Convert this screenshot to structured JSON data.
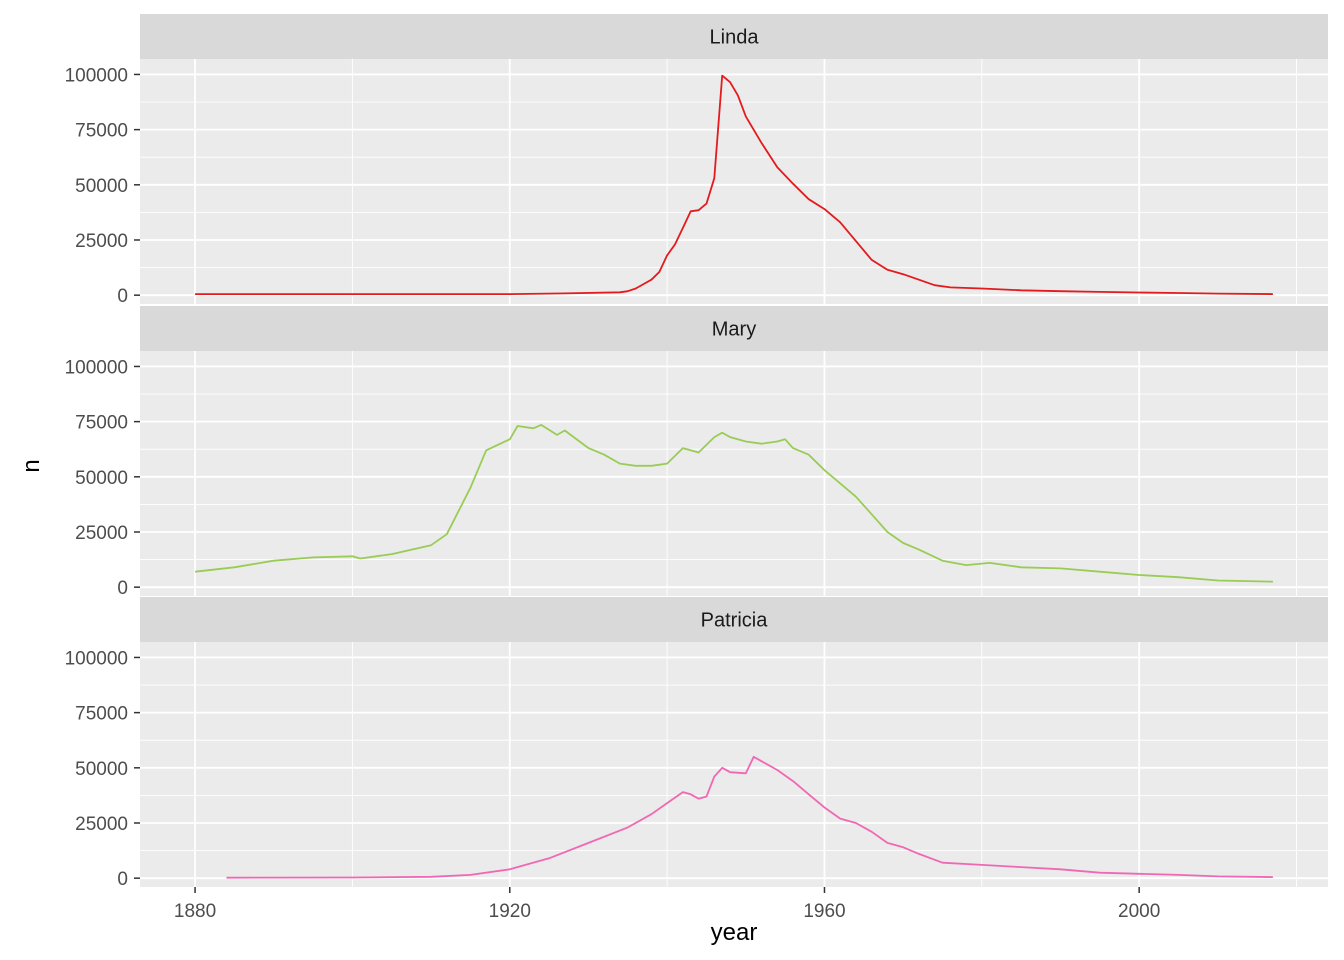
{
  "chart_data": {
    "type": "line",
    "facet_by": "name",
    "xlabel": "year",
    "ylabel": "n",
    "xlim": [
      1873,
      2024
    ],
    "ylim": [
      -4000,
      107000
    ],
    "x_ticks": [
      1880,
      1920,
      1960,
      2000
    ],
    "x_tick_labels": [
      "1880",
      "1920",
      "1960",
      "2000"
    ],
    "y_ticks": [
      0,
      25000,
      50000,
      75000,
      100000
    ],
    "y_tick_labels": [
      "0",
      "25000",
      "50000",
      "75000",
      "100000"
    ],
    "grid": true,
    "legend": "none",
    "panels": [
      {
        "name": "Linda",
        "color": "#E41A1C",
        "x": [
          1880,
          1900,
          1920,
          1927,
          1934,
          1935,
          1936,
          1937,
          1938,
          1939,
          1940,
          1941,
          1942,
          1943,
          1944,
          1945,
          1946,
          1947,
          1948,
          1949,
          1950,
          1952,
          1954,
          1956,
          1958,
          1960,
          1962,
          1964,
          1966,
          1968,
          1970,
          1972,
          1974,
          1976,
          1980,
          1985,
          1990,
          1995,
          2000,
          2005,
          2010,
          2017
        ],
        "y": [
          500,
          500,
          500,
          800,
          1300,
          1800,
          3000,
          5000,
          7000,
          10500,
          18000,
          23000,
          30500,
          38000,
          38500,
          41500,
          53000,
          99500,
          96500,
          90500,
          81000,
          69000,
          58000,
          50500,
          43500,
          39000,
          33000,
          24500,
          16000,
          11500,
          9500,
          7000,
          4500,
          3500,
          3000,
          2200,
          1800,
          1500,
          1200,
          1000,
          700,
          500
        ]
      },
      {
        "name": "Mary",
        "color": "#99CC55",
        "x": [
          1880,
          1885,
          1890,
          1895,
          1900,
          1901,
          1905,
          1910,
          1912,
          1915,
          1917,
          1920,
          1921,
          1923,
          1924,
          1926,
          1927,
          1930,
          1932,
          1934,
          1936,
          1938,
          1940,
          1942,
          1944,
          1946,
          1947,
          1948,
          1950,
          1952,
          1954,
          1955,
          1956,
          1958,
          1960,
          1962,
          1964,
          1966,
          1968,
          1970,
          1972,
          1975,
          1978,
          1981,
          1985,
          1990,
          1995,
          2000,
          2005,
          2010,
          2017
        ],
        "y": [
          7000,
          9000,
          12000,
          13500,
          14000,
          13000,
          15000,
          19000,
          24000,
          45000,
          62000,
          67000,
          73000,
          72000,
          73500,
          69000,
          71000,
          63000,
          60000,
          56000,
          55000,
          55000,
          56000,
          63000,
          61000,
          68000,
          70000,
          68000,
          66000,
          65000,
          66000,
          67000,
          63000,
          60000,
          53000,
          47000,
          41000,
          33000,
          25000,
          20000,
          17000,
          12000,
          10000,
          11000,
          9000,
          8500,
          7000,
          5500,
          4500,
          3000,
          2500
        ]
      },
      {
        "name": "Patricia",
        "color": "#F068B4",
        "x": [
          1884,
          1900,
          1910,
          1915,
          1920,
          1925,
          1930,
          1935,
          1938,
          1940,
          1942,
          1943,
          1944,
          1945,
          1946,
          1947,
          1948,
          1950,
          1951,
          1952,
          1954,
          1956,
          1958,
          1960,
          1962,
          1964,
          1966,
          1968,
          1970,
          1972,
          1975,
          1980,
          1985,
          1990,
          1995,
          2000,
          2005,
          2010,
          2017
        ],
        "y": [
          200,
          300,
          600,
          1500,
          4000,
          9000,
          16000,
          23000,
          29000,
          34000,
          39000,
          38000,
          36000,
          37000,
          46000,
          50000,
          48000,
          47500,
          55000,
          53000,
          49000,
          44000,
          38000,
          32000,
          27000,
          25000,
          21000,
          16000,
          14000,
          11000,
          7000,
          6000,
          5000,
          4000,
          2500,
          2000,
          1500,
          800,
          500
        ]
      }
    ]
  }
}
